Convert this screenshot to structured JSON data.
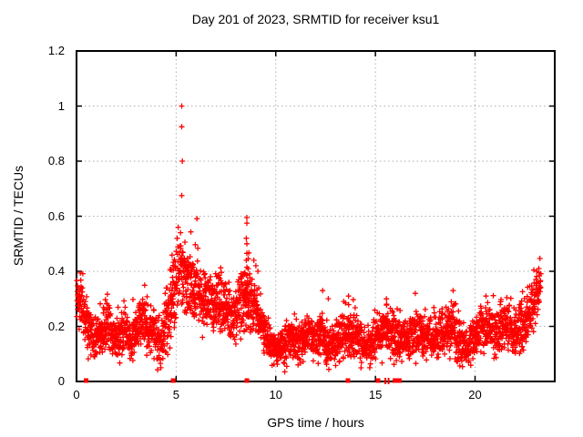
{
  "chart_data": {
    "type": "scatter",
    "title": "Day 201 of 2023, SRMTID for receiver ksu1",
    "xlabel": "GPS time / hours",
    "ylabel": "SRMTID / TECUs",
    "xlim": [
      0,
      24
    ],
    "ylim": [
      0,
      1.2
    ],
    "xticks": [
      0,
      5,
      10,
      15,
      20
    ],
    "yticks": [
      0,
      0.2,
      0.4,
      0.6,
      0.8,
      1.0,
      1.2
    ],
    "xtick_labels": [
      "0",
      "5",
      "10",
      "15",
      "20"
    ],
    "ytick_labels": [
      "0",
      "0.2",
      "0.4",
      "0.6",
      "0.8",
      "1",
      "1.2"
    ],
    "grid": true,
    "legend": "none",
    "marker": {
      "shape": "plus",
      "size": 7,
      "color": "#ff0000"
    },
    "colors": {
      "background": "#ffffff",
      "border": "#000000",
      "grid": "#b0b0b0",
      "text": "#000000",
      "points": "#ff0000"
    },
    "trend_mean_spread_by_hour": [
      [
        0.0,
        0.3,
        0.04
      ],
      [
        0.3,
        0.27,
        0.05
      ],
      [
        0.6,
        0.19,
        0.05
      ],
      [
        0.9,
        0.15,
        0.04
      ],
      [
        1.2,
        0.17,
        0.05
      ],
      [
        1.5,
        0.21,
        0.05
      ],
      [
        1.8,
        0.17,
        0.05
      ],
      [
        2.1,
        0.16,
        0.04
      ],
      [
        2.4,
        0.2,
        0.05
      ],
      [
        2.7,
        0.15,
        0.04
      ],
      [
        3.0,
        0.18,
        0.05
      ],
      [
        3.3,
        0.24,
        0.05
      ],
      [
        3.6,
        0.16,
        0.05
      ],
      [
        3.9,
        0.2,
        0.06
      ],
      [
        4.2,
        0.14,
        0.05
      ],
      [
        4.5,
        0.2,
        0.07
      ],
      [
        4.8,
        0.3,
        0.08
      ],
      [
        5.1,
        0.41,
        0.08
      ],
      [
        5.4,
        0.4,
        0.08
      ],
      [
        5.7,
        0.34,
        0.07
      ],
      [
        6.0,
        0.36,
        0.07
      ],
      [
        6.3,
        0.3,
        0.06
      ],
      [
        6.6,
        0.32,
        0.06
      ],
      [
        6.9,
        0.27,
        0.06
      ],
      [
        7.2,
        0.29,
        0.06
      ],
      [
        7.5,
        0.26,
        0.06
      ],
      [
        7.8,
        0.21,
        0.06
      ],
      [
        8.1,
        0.27,
        0.06
      ],
      [
        8.4,
        0.31,
        0.07
      ],
      [
        8.7,
        0.3,
        0.07
      ],
      [
        9.0,
        0.26,
        0.06
      ],
      [
        9.3,
        0.21,
        0.05
      ],
      [
        9.6,
        0.16,
        0.04
      ],
      [
        9.9,
        0.13,
        0.03
      ],
      [
        10.2,
        0.12,
        0.03
      ],
      [
        10.5,
        0.14,
        0.04
      ],
      [
        10.8,
        0.16,
        0.04
      ],
      [
        11.1,
        0.14,
        0.04
      ],
      [
        11.4,
        0.15,
        0.04
      ],
      [
        11.7,
        0.18,
        0.04
      ],
      [
        12.0,
        0.14,
        0.04
      ],
      [
        12.3,
        0.19,
        0.05
      ],
      [
        12.6,
        0.13,
        0.04
      ],
      [
        12.9,
        0.13,
        0.04
      ],
      [
        13.2,
        0.16,
        0.04
      ],
      [
        13.5,
        0.19,
        0.05
      ],
      [
        13.8,
        0.17,
        0.05
      ],
      [
        14.1,
        0.17,
        0.05
      ],
      [
        14.4,
        0.13,
        0.04
      ],
      [
        14.7,
        0.13,
        0.04
      ],
      [
        15.0,
        0.16,
        0.04
      ],
      [
        15.3,
        0.18,
        0.05
      ],
      [
        15.6,
        0.2,
        0.05
      ],
      [
        15.9,
        0.16,
        0.05
      ],
      [
        16.2,
        0.14,
        0.05
      ],
      [
        16.5,
        0.15,
        0.04
      ],
      [
        16.8,
        0.17,
        0.04
      ],
      [
        17.1,
        0.18,
        0.05
      ],
      [
        17.4,
        0.15,
        0.04
      ],
      [
        17.7,
        0.16,
        0.04
      ],
      [
        18.0,
        0.16,
        0.04
      ],
      [
        18.3,
        0.18,
        0.05
      ],
      [
        18.6,
        0.17,
        0.05
      ],
      [
        18.9,
        0.2,
        0.05
      ],
      [
        19.2,
        0.15,
        0.05
      ],
      [
        19.5,
        0.11,
        0.04
      ],
      [
        19.8,
        0.14,
        0.04
      ],
      [
        20.1,
        0.17,
        0.04
      ],
      [
        20.4,
        0.2,
        0.05
      ],
      [
        20.7,
        0.19,
        0.05
      ],
      [
        21.0,
        0.17,
        0.05
      ],
      [
        21.3,
        0.2,
        0.05
      ],
      [
        21.6,
        0.21,
        0.05
      ],
      [
        21.9,
        0.17,
        0.05
      ],
      [
        22.2,
        0.19,
        0.05
      ],
      [
        22.5,
        0.23,
        0.05
      ],
      [
        22.8,
        0.26,
        0.05
      ],
      [
        23.0,
        0.28,
        0.05
      ],
      [
        23.2,
        0.33,
        0.04
      ],
      [
        23.3,
        0.37,
        0.03
      ]
    ],
    "outlier_points": [
      [
        5.28,
        1.0
      ],
      [
        5.28,
        0.925
      ],
      [
        5.31,
        0.8
      ],
      [
        5.28,
        0.675
      ],
      [
        5.1,
        0.56
      ],
      [
        5.22,
        0.54
      ],
      [
        5.05,
        0.52
      ],
      [
        8.55,
        0.595
      ],
      [
        8.55,
        0.575
      ],
      [
        8.52,
        0.52
      ],
      [
        8.55,
        0.5
      ],
      [
        8.55,
        0.465
      ],
      [
        8.52,
        0.44
      ],
      [
        8.55,
        0.415
      ],
      [
        8.55,
        0.385
      ],
      [
        8.58,
        0.355
      ],
      [
        8.9,
        0.44
      ],
      [
        9.0,
        0.42
      ],
      [
        9.1,
        0.4
      ],
      [
        10.45,
        0.035
      ],
      [
        10.55,
        0.055
      ],
      [
        12.35,
        0.33
      ],
      [
        13.65,
        0.31
      ],
      [
        15.55,
        0.3
      ],
      [
        17.0,
        0.32
      ],
      [
        18.9,
        0.33
      ],
      [
        20.55,
        0.31
      ],
      [
        22.95,
        0.405
      ],
      [
        23.1,
        0.4
      ],
      [
        23.2,
        0.41
      ]
    ],
    "zero_markers": {
      "squares_hours": [
        0.48,
        4.85,
        8.55,
        13.62,
        15.13,
        15.98,
        16.2
      ],
      "ticks_hours": [
        15.5,
        15.66
      ]
    },
    "render": {
      "seed": 2023201,
      "points_per_hour": 110,
      "x_start": 0.02,
      "x_end": 23.3
    }
  }
}
